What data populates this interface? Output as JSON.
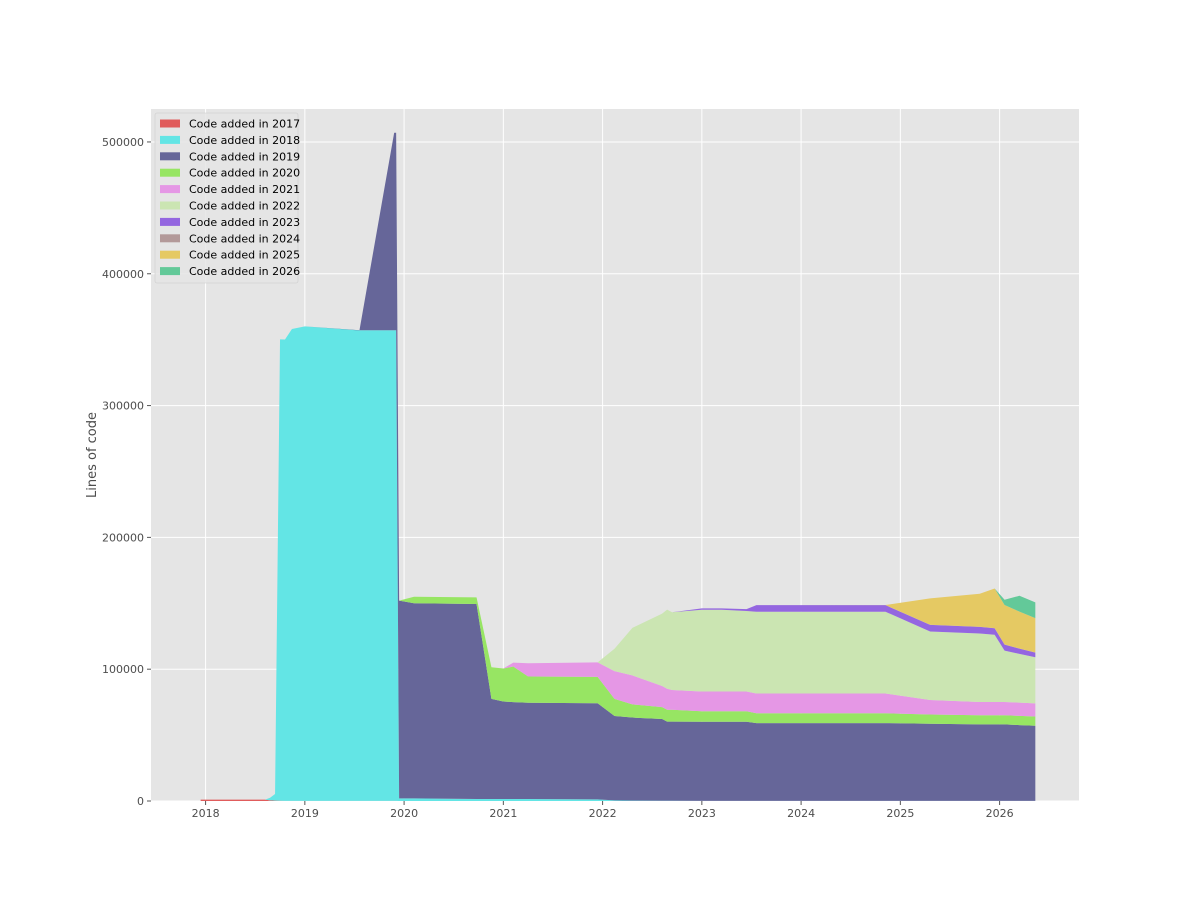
{
  "chart_data": {
    "type": "area",
    "stacked": true,
    "ylabel": "Lines of code",
    "xlabel": "",
    "title": "",
    "xlim": [
      2017.45,
      2026.8
    ],
    "ylim": [
      0,
      525000
    ],
    "x_ticks": [
      "2018",
      "2019",
      "2020",
      "2021",
      "2022",
      "2023",
      "2024",
      "2025",
      "2026"
    ],
    "y_ticks": [
      "0",
      "100000",
      "200000",
      "300000",
      "400000",
      "500000"
    ],
    "grid": true,
    "legend_position": "top-left",
    "background": "#e5e5e5",
    "x": [
      2017.95,
      2018.6,
      2018.65,
      2018.7,
      2018.75,
      2018.8,
      2018.87,
      2019.0,
      2019.55,
      2019.56,
      2019.9,
      2019.92,
      2019.95,
      2020.1,
      2020.73,
      2020.88,
      2021.0,
      2021.1,
      2021.25,
      2021.95,
      2022.12,
      2022.3,
      2022.6,
      2022.65,
      2022.7,
      2023.0,
      2023.2,
      2023.45,
      2023.55,
      2024.85,
      2025.3,
      2025.8,
      2025.95,
      2026.05,
      2026.2,
      2026.36
    ],
    "series": [
      {
        "name": "Code added in 2017",
        "color": "#e05c5c",
        "values": [
          1000,
          1000,
          500,
          300,
          200,
          100,
          100,
          100,
          100,
          100,
          100,
          100,
          0,
          0,
          0,
          0,
          0,
          0,
          0,
          0,
          0,
          0,
          0,
          0,
          0,
          0,
          0,
          0,
          0,
          0,
          0,
          0,
          0,
          0,
          0,
          0
        ]
      },
      {
        "name": "Code added in 2018",
        "color": "#63e5e5",
        "values": [
          0,
          0,
          2000,
          5000,
          350000,
          350000,
          358000,
          360000,
          357000,
          357000,
          357000,
          357000,
          2000,
          2000,
          1500,
          1500,
          1500,
          1500,
          1500,
          1200,
          500,
          300,
          200,
          200,
          200,
          100,
          100,
          100,
          100,
          100,
          100,
          100,
          100,
          100,
          100,
          100
        ]
      },
      {
        "name": "Code added in 2019",
        "color": "#666699",
        "values": [
          0,
          0,
          0,
          0,
          0,
          0,
          0,
          0,
          0,
          0,
          150000,
          150000,
          150000,
          148000,
          148000,
          76000,
          74000,
          73500,
          73000,
          73000,
          64000,
          63000,
          62000,
          60000,
          60000,
          60000,
          60000,
          60000,
          59000,
          59000,
          58500,
          58000,
          58000,
          58000,
          57500,
          57000
        ]
      },
      {
        "name": "Code added in 2020",
        "color": "#97e563",
        "values": [
          0,
          0,
          0,
          0,
          0,
          0,
          0,
          0,
          0,
          0,
          0,
          0,
          0,
          5000,
          5000,
          24000,
          25000,
          27000,
          20000,
          20000,
          13000,
          10000,
          9000,
          9000,
          9000,
          8000,
          8000,
          8000,
          7500,
          7500,
          7000,
          7000,
          7000,
          7000,
          7000,
          7000
        ]
      },
      {
        "name": "Code added in 2021",
        "color": "#e597e5",
        "values": [
          0,
          0,
          0,
          0,
          0,
          0,
          0,
          0,
          0,
          0,
          0,
          0,
          0,
          0,
          0,
          0,
          0,
          3000,
          10000,
          11000,
          21000,
          22000,
          16000,
          16000,
          15000,
          15000,
          15000,
          15000,
          15000,
          15000,
          11000,
          10000,
          10000,
          10000,
          10000,
          10000
        ]
      },
      {
        "name": "Code added in 2022",
        "color": "#cbe5b2",
        "values": [
          0,
          0,
          0,
          0,
          0,
          0,
          0,
          0,
          0,
          0,
          0,
          0,
          0,
          0,
          0,
          0,
          0,
          0,
          0,
          0,
          17000,
          36000,
          55000,
          60000,
          59000,
          62000,
          62000,
          61000,
          62000,
          62000,
          52000,
          52000,
          51000,
          39000,
          37000,
          35000
        ]
      },
      {
        "name": "Code added in 2023",
        "color": "#9466e0",
        "values": [
          0,
          0,
          0,
          0,
          0,
          0,
          0,
          0,
          0,
          0,
          0,
          0,
          0,
          0,
          0,
          0,
          0,
          0,
          0,
          0,
          0,
          0,
          0,
          0,
          0,
          1000,
          1000,
          1500,
          5000,
          5000,
          5000,
          5000,
          5000,
          4500,
          4000,
          3500
        ]
      },
      {
        "name": "Code added in 2024",
        "color": "#b39999",
        "values": [
          0,
          0,
          0,
          0,
          0,
          0,
          0,
          0,
          0,
          0,
          0,
          0,
          0,
          0,
          0,
          0,
          0,
          0,
          0,
          0,
          0,
          0,
          0,
          0,
          0,
          0,
          0,
          0,
          0,
          100,
          100,
          100,
          100,
          100,
          100,
          100
        ]
      },
      {
        "name": "Code added in 2025",
        "color": "#e5c963",
        "values": [
          0,
          0,
          0,
          0,
          0,
          0,
          0,
          0,
          0,
          0,
          0,
          0,
          0,
          0,
          0,
          0,
          0,
          0,
          0,
          0,
          0,
          0,
          0,
          0,
          0,
          0,
          0,
          0,
          0,
          0,
          20000,
          25000,
          30000,
          30000,
          28000,
          26000
        ]
      },
      {
        "name": "Code added in 2026",
        "color": "#63c999",
        "values": [
          0,
          0,
          0,
          0,
          0,
          0,
          0,
          0,
          0,
          0,
          0,
          0,
          0,
          0,
          0,
          0,
          0,
          0,
          0,
          0,
          0,
          0,
          0,
          0,
          0,
          0,
          0,
          0,
          0,
          0,
          0,
          0,
          0,
          4000,
          12000,
          12000
        ]
      }
    ]
  },
  "spike": {
    "x": [
      2019.55,
      2019.9,
      2019.92
    ],
    "values_2019_top": [
      357000,
      507000,
      507000
    ]
  }
}
